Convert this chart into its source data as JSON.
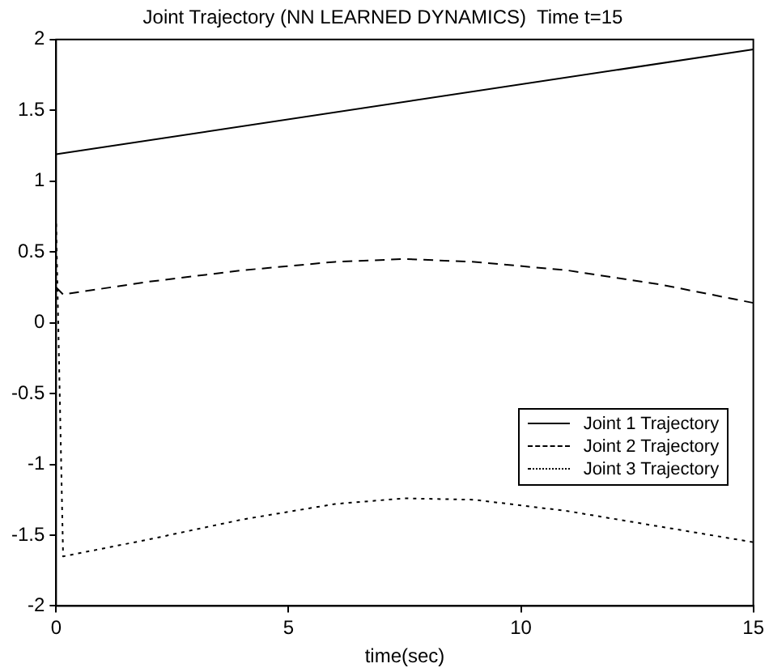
{
  "chart_data": {
    "type": "line",
    "title": "Joint Trajectory (NN LEARNED DYNAMICS)  Time t=15",
    "xlabel": "time(sec)",
    "xlim": [
      0,
      15
    ],
    "xticks": [
      0,
      5,
      10,
      15
    ],
    "ylim": [
      -2,
      2
    ],
    "yticks": [
      -2,
      -1.5,
      -1,
      -0.5,
      0,
      0.5,
      1,
      1.5,
      2
    ],
    "grid": false,
    "legend": "bottom right",
    "marker": "none",
    "series": [
      {
        "name": "Joint 1 Trajectory",
        "color": "#000000",
        "line_style": "solid",
        "x": [
          0,
          15
        ],
        "values": [
          1.19,
          1.93
        ]
      },
      {
        "name": "Joint 2 Trajectory",
        "color": "#000000",
        "line_style": "dashed",
        "x": [
          0,
          0.15,
          2,
          4,
          6,
          7.5,
          9,
          11,
          13,
          15
        ],
        "values": [
          0.25,
          0.2,
          0.29,
          0.37,
          0.43,
          0.45,
          0.43,
          0.37,
          0.27,
          0.14
        ]
      },
      {
        "name": "Joint 3 Trajectory",
        "color": "#000000",
        "line_style": "dotted",
        "x": [
          0,
          0.15,
          2,
          4,
          6,
          7.5,
          9,
          11,
          13,
          15
        ],
        "values": [
          0.7,
          -1.65,
          -1.53,
          -1.39,
          -1.28,
          -1.24,
          -1.25,
          -1.33,
          -1.44,
          -1.55
        ]
      }
    ]
  }
}
